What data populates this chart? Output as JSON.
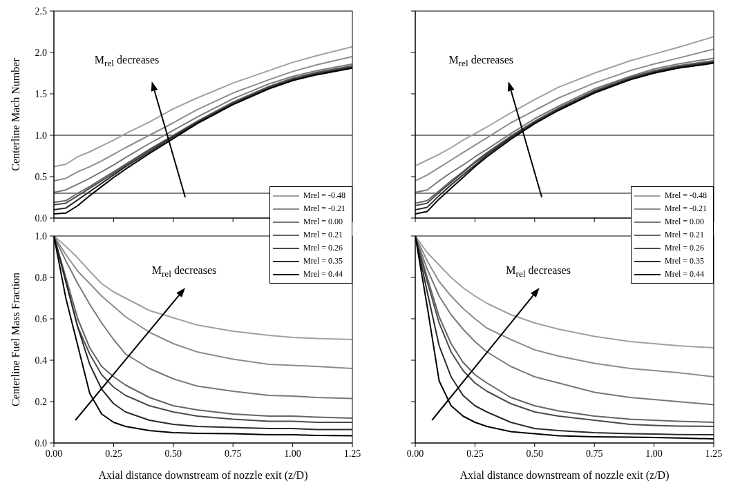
{
  "chart_data": [
    {
      "type": "line",
      "ylabel": "Centerline Mach Number",
      "legend": "bottom right",
      "tick_labels": "y",
      "grid": false,
      "x": [
        0,
        0.05,
        0.1,
        0.15,
        0.2,
        0.25,
        0.3,
        0.4,
        0.5,
        0.6,
        0.75,
        0.9,
        1.0,
        1.1,
        1.25
      ],
      "xlim": [
        0,
        1.25
      ],
      "xticks": [
        0,
        0.25,
        0.5,
        0.75,
        1,
        1.25
      ],
      "ylim": [
        0,
        2.5
      ],
      "yticks": [
        {
          "value": 0,
          "label": "0.0"
        },
        0.5,
        {
          "value": 1,
          "label": "1.0"
        },
        1.5,
        {
          "value": 2,
          "label": "2.0"
        },
        2.5
      ],
      "ref_lines": [
        {
          "axis": "y",
          "value": 1.0,
          "color": "#000000"
        },
        {
          "axis": "y",
          "value": 0.3,
          "color": "#000000"
        }
      ],
      "annotations": [
        "M$_{rel}$ decreases"
      ],
      "series": [
        {
          "name": "Mrel = -0.48",
          "color": "#a0a0a0",
          "values": [
            0.62,
            0.65,
            0.74,
            0.8,
            0.87,
            0.94,
            1.02,
            1.16,
            1.32,
            1.45,
            1.63,
            1.78,
            1.88,
            1.96,
            2.07
          ]
        },
        {
          "name": "Mrel = -0.21",
          "color": "#8c8c8c",
          "values": [
            0.45,
            0.48,
            0.56,
            0.62,
            0.69,
            0.77,
            0.85,
            1.0,
            1.15,
            1.31,
            1.51,
            1.67,
            1.77,
            1.85,
            1.95
          ]
        },
        {
          "name": "Mrel = 0.00",
          "color": "#787878",
          "values": [
            0.31,
            0.34,
            0.41,
            0.48,
            0.56,
            0.64,
            0.73,
            0.9,
            1.06,
            1.22,
            1.44,
            1.62,
            1.71,
            1.78,
            1.86
          ]
        },
        {
          "name": "Mrel = 0.21",
          "color": "#646464",
          "values": [
            0.19,
            0.21,
            0.3,
            0.38,
            0.47,
            0.56,
            0.65,
            0.83,
            1.0,
            1.17,
            1.4,
            1.59,
            1.69,
            1.76,
            1.84
          ]
        },
        {
          "name": "Mrel = 0.26",
          "color": "#4a4a4a",
          "values": [
            0.16,
            0.18,
            0.27,
            0.36,
            0.45,
            0.54,
            0.64,
            0.82,
            0.99,
            1.16,
            1.39,
            1.58,
            1.68,
            1.75,
            1.83
          ]
        },
        {
          "name": "Mrel = 0.35",
          "color": "#2a2a2a",
          "values": [
            0.1,
            0.12,
            0.22,
            0.32,
            0.42,
            0.52,
            0.62,
            0.8,
            0.98,
            1.15,
            1.38,
            1.57,
            1.67,
            1.74,
            1.82
          ]
        },
        {
          "name": "Mrel = 0.44",
          "color": "#000000",
          "values": [
            0.05,
            0.06,
            0.15,
            0.27,
            0.38,
            0.49,
            0.59,
            0.78,
            0.96,
            1.14,
            1.37,
            1.56,
            1.66,
            1.73,
            1.81
          ]
        }
      ]
    },
    {
      "type": "line",
      "legend": "bottom right",
      "tick_labels": false,
      "grid": false,
      "x": [
        0,
        0.05,
        0.1,
        0.15,
        0.2,
        0.25,
        0.3,
        0.4,
        0.5,
        0.6,
        0.75,
        0.9,
        1.0,
        1.1,
        1.25
      ],
      "xlim": [
        0,
        1.25
      ],
      "xticks": [
        0,
        0.25,
        0.5,
        0.75,
        1,
        1.25
      ],
      "ylim": [
        0,
        2.5
      ],
      "yticks": [
        0,
        0.5,
        1,
        1.5,
        2,
        2.5
      ],
      "ref_lines": [
        {
          "axis": "y",
          "value": 1.0,
          "color": "#000000"
        },
        {
          "axis": "y",
          "value": 0.3,
          "color": "#000000"
        }
      ],
      "annotations": [
        "M$_{rel}$ decreases"
      ],
      "series": [
        {
          "name": "Mrel = -0.48",
          "color": "#a0a0a0",
          "values": [
            0.63,
            0.7,
            0.77,
            0.85,
            0.94,
            1.02,
            1.1,
            1.27,
            1.43,
            1.58,
            1.75,
            1.9,
            1.98,
            2.06,
            2.19
          ]
        },
        {
          "name": "Mrel = -0.21",
          "color": "#8c8c8c",
          "values": [
            0.45,
            0.52,
            0.61,
            0.7,
            0.79,
            0.88,
            0.97,
            1.15,
            1.3,
            1.45,
            1.63,
            1.78,
            1.86,
            1.93,
            2.04
          ]
        },
        {
          "name": "Mrel = 0.00",
          "color": "#787878",
          "values": [
            0.31,
            0.34,
            0.45,
            0.55,
            0.64,
            0.74,
            0.83,
            1.02,
            1.2,
            1.35,
            1.56,
            1.71,
            1.8,
            1.86,
            1.93
          ]
        },
        {
          "name": "Mrel = 0.21",
          "color": "#646464",
          "values": [
            0.18,
            0.21,
            0.33,
            0.45,
            0.56,
            0.68,
            0.79,
            0.99,
            1.17,
            1.33,
            1.54,
            1.7,
            1.78,
            1.84,
            1.9
          ]
        },
        {
          "name": "Mrel = 0.26",
          "color": "#4a4a4a",
          "values": [
            0.15,
            0.18,
            0.31,
            0.43,
            0.55,
            0.67,
            0.78,
            0.98,
            1.16,
            1.32,
            1.53,
            1.69,
            1.77,
            1.83,
            1.89
          ]
        },
        {
          "name": "Mrel = 0.35",
          "color": "#2a2a2a",
          "values": [
            0.1,
            0.13,
            0.27,
            0.4,
            0.52,
            0.64,
            0.76,
            0.97,
            1.15,
            1.31,
            1.52,
            1.68,
            1.76,
            1.82,
            1.88
          ]
        },
        {
          "name": "Mrel = 0.44",
          "color": "#000000",
          "values": [
            0.05,
            0.08,
            0.23,
            0.36,
            0.49,
            0.62,
            0.74,
            0.95,
            1.14,
            1.3,
            1.51,
            1.67,
            1.75,
            1.81,
            1.87
          ]
        }
      ]
    },
    {
      "type": "line",
      "ylabel": "Centerline Fuel Mass Fraction",
      "xlabel": "Axial distance downstream of nozzle exit (z/D)",
      "grid": false,
      "x": [
        0,
        0.05,
        0.1,
        0.15,
        0.2,
        0.25,
        0.3,
        0.4,
        0.5,
        0.6,
        0.75,
        0.9,
        1.0,
        1.1,
        1.25
      ],
      "xlim": [
        0,
        1.25
      ],
      "xticks": [
        {
          "value": 0,
          "label": "0.00"
        },
        {
          "value": 0.25,
          "label": "0.25"
        },
        {
          "value": 0.5,
          "label": "0.50"
        },
        {
          "value": 0.75,
          "label": "0.75"
        },
        {
          "value": 1,
          "label": "1.00"
        },
        {
          "value": 1.25,
          "label": "1.25"
        }
      ],
      "ylim": [
        0,
        1
      ],
      "yticks": [
        {
          "value": 0,
          "label": "0.0"
        },
        0.2,
        0.4,
        0.6,
        0.8,
        {
          "value": 1,
          "label": "1.0"
        }
      ],
      "annotations": [
        "M$_{rel}$ decreases"
      ],
      "series": [
        {
          "color": "#a0a0a0",
          "values": [
            1,
            0.95,
            0.894,
            0.83,
            0.77,
            0.73,
            0.7,
            0.64,
            0.605,
            0.57,
            0.54,
            0.52,
            0.51,
            0.505,
            0.5
          ]
        },
        {
          "color": "#8c8c8c",
          "values": [
            1,
            0.91,
            0.83,
            0.77,
            0.71,
            0.66,
            0.61,
            0.535,
            0.48,
            0.44,
            0.405,
            0.38,
            0.375,
            0.37,
            0.36
          ]
        },
        {
          "color": "#787878",
          "values": [
            1,
            0.88,
            0.77,
            0.67,
            0.58,
            0.5,
            0.43,
            0.36,
            0.31,
            0.275,
            0.25,
            0.23,
            0.227,
            0.22,
            0.215
          ]
        },
        {
          "color": "#646464",
          "values": [
            1,
            0.8,
            0.6,
            0.46,
            0.37,
            0.32,
            0.28,
            0.22,
            0.18,
            0.16,
            0.14,
            0.13,
            0.13,
            0.125,
            0.12
          ]
        },
        {
          "color": "#4a4a4a",
          "values": [
            1,
            0.78,
            0.56,
            0.43,
            0.33,
            0.27,
            0.23,
            0.18,
            0.15,
            0.13,
            0.115,
            0.105,
            0.105,
            0.1,
            0.1
          ]
        },
        {
          "color": "#2a2a2a",
          "values": [
            1,
            0.78,
            0.56,
            0.38,
            0.26,
            0.19,
            0.15,
            0.11,
            0.09,
            0.08,
            0.075,
            0.07,
            0.07,
            0.065,
            0.065
          ]
        },
        {
          "color": "#000000",
          "values": [
            1,
            0.7,
            0.47,
            0.24,
            0.14,
            0.1,
            0.08,
            0.06,
            0.05,
            0.047,
            0.045,
            0.04,
            0.04,
            0.037,
            0.035
          ]
        }
      ]
    },
    {
      "type": "line",
      "xlabel": "Axial distance downstream of nozzle exit (z/D)",
      "tick_labels": "x",
      "grid": false,
      "x": [
        0,
        0.05,
        0.1,
        0.15,
        0.2,
        0.25,
        0.3,
        0.4,
        0.5,
        0.6,
        0.75,
        0.9,
        1.0,
        1.1,
        1.25
      ],
      "xlim": [
        0,
        1.25
      ],
      "xticks": [
        {
          "value": 0,
          "label": "0.00"
        },
        {
          "value": 0.25,
          "label": "0.25"
        },
        {
          "value": 0.5,
          "label": "0.50"
        },
        {
          "value": 0.75,
          "label": "0.75"
        },
        {
          "value": 1,
          "label": "1.00"
        },
        {
          "value": 1.25,
          "label": "1.25"
        }
      ],
      "ylim": [
        0,
        1
      ],
      "yticks": [
        0,
        0.2,
        0.4,
        0.6,
        0.8,
        1
      ],
      "annotations": [
        "M$_{rel}$ decreases"
      ],
      "series": [
        {
          "color": "#a0a0a0",
          "values": [
            1,
            0.92,
            0.86,
            0.8,
            0.75,
            0.71,
            0.675,
            0.62,
            0.58,
            0.55,
            0.515,
            0.49,
            0.48,
            0.47,
            0.46
          ]
        },
        {
          "color": "#8c8c8c",
          "values": [
            1,
            0.88,
            0.78,
            0.71,
            0.65,
            0.6,
            0.555,
            0.5,
            0.45,
            0.42,
            0.385,
            0.36,
            0.35,
            0.34,
            0.32
          ]
        },
        {
          "color": "#787878",
          "values": [
            1,
            0.84,
            0.71,
            0.62,
            0.55,
            0.49,
            0.44,
            0.37,
            0.32,
            0.29,
            0.245,
            0.22,
            0.21,
            0.2,
            0.185
          ]
        },
        {
          "color": "#646464",
          "values": [
            1,
            0.8,
            0.61,
            0.48,
            0.39,
            0.33,
            0.29,
            0.22,
            0.18,
            0.155,
            0.13,
            0.115,
            0.11,
            0.105,
            0.1
          ]
        },
        {
          "color": "#4a4a4a",
          "values": [
            1,
            0.78,
            0.58,
            0.44,
            0.35,
            0.29,
            0.25,
            0.19,
            0.15,
            0.13,
            0.11,
            0.09,
            0.085,
            0.082,
            0.08
          ]
        },
        {
          "color": "#2a2a2a",
          "values": [
            1,
            0.73,
            0.47,
            0.32,
            0.23,
            0.18,
            0.15,
            0.1,
            0.07,
            0.06,
            0.05,
            0.045,
            0.043,
            0.041,
            0.04
          ]
        },
        {
          "color": "#000000",
          "values": [
            1,
            0.66,
            0.3,
            0.18,
            0.13,
            0.1,
            0.08,
            0.055,
            0.045,
            0.035,
            0.03,
            0.028,
            0.027,
            0.024,
            0.02
          ]
        }
      ]
    }
  ]
}
